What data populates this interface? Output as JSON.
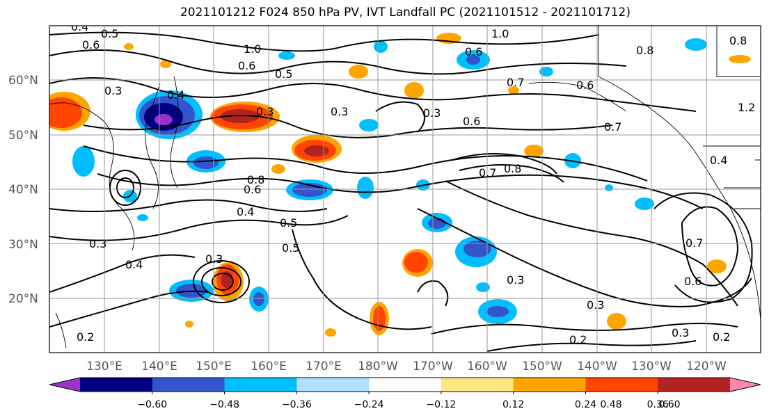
{
  "title": "2021101212 F024 850 hPa PV, IVT Landfall PC (2021101512 - 2021101712)",
  "map": {
    "lat_labels": [
      "60°N",
      "50°N",
      "40°N",
      "30°N",
      "20°N"
    ],
    "lon_labels": [
      "130°E",
      "140°E",
      "150°E",
      "160°E",
      "170°E",
      "180°W",
      "170°W",
      "160°W",
      "150°W",
      "140°W",
      "130°W",
      "120°W"
    ],
    "contour_labels": [
      "0.4",
      "0.5",
      "0.6",
      "1.0",
      "0.6",
      "0.5",
      "0.3",
      "0.4",
      "0.3",
      "0.8",
      "0.6",
      "0.4",
      "0.5",
      "0.5",
      "0.3",
      "0.4",
      "0.3",
      "0.3",
      "0.6",
      "0.7",
      "0.8",
      "0.6",
      "0.7",
      "0.8",
      "0.6",
      "0.3",
      "0.3",
      "0.2",
      "0.3",
      "0.3",
      "0.6",
      "0.7",
      "0.4",
      "0.2",
      "1.0",
      "0.7",
      "0.8",
      "1.2",
      "0.2"
    ]
  },
  "colorbar": {
    "tick_labels": [
      "−0.60",
      "−0.48",
      "−0.36",
      "−0.24",
      "−0.12",
      "0.12",
      "0.24",
      "0.36",
      "0.48",
      "0.60"
    ],
    "colors": [
      "#9933cc",
      "#000080",
      "#3355cc",
      "#00bfff",
      "#b0e0ff",
      "#ffffff",
      "#ffe680",
      "#ffa500",
      "#ff4500",
      "#b22222",
      "#ff88aa"
    ]
  }
}
